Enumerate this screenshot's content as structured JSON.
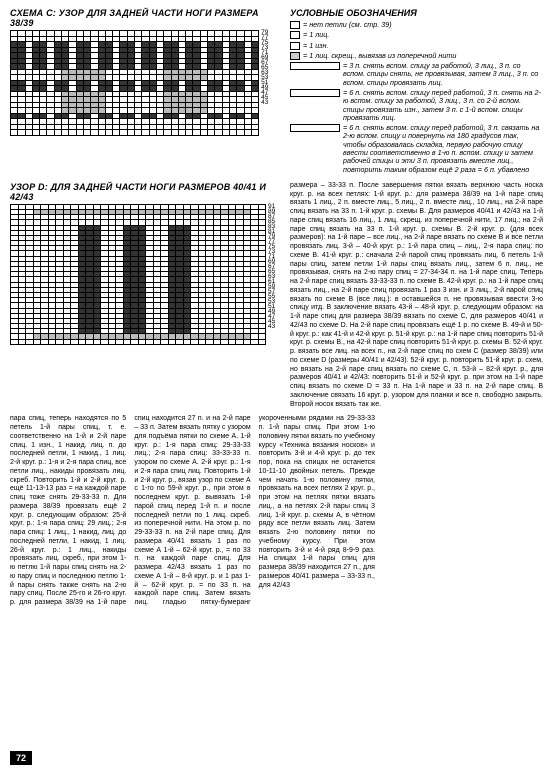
{
  "chartC": {
    "title": "СХЕМА С: УЗОР ДЛЯ ЗАДНЕЙ ЧАСТИ НОГИ РАЗМЕРА 38/39",
    "cols": 34,
    "rows": 19,
    "row_labels": [
      "79",
      "77",
      "75",
      "73",
      "71",
      "69",
      "67",
      "65",
      "63",
      "53",
      "51",
      "49",
      "47",
      "45",
      "43"
    ],
    "black_rows": [
      2,
      3,
      4,
      5,
      6,
      9,
      10,
      15
    ],
    "gray_rows": [
      7,
      8,
      11,
      12,
      13,
      14
    ]
  },
  "chartD": {
    "title": "УЗОР D: ДЛЯ ЗАДНЕЙ ЧАСТИ НОГИ РАЗМЕРОВ 40/41 И 42/43",
    "cols": 34,
    "rows": 27,
    "row_labels": [
      "91",
      "89",
      "87",
      "85",
      "83",
      "81",
      "79",
      "77",
      "75",
      "73",
      "71",
      "69",
      "67",
      "65",
      "63",
      "61",
      "59",
      "57",
      "55",
      "53",
      "51",
      "49",
      "47",
      "45",
      "43"
    ],
    "col_marks": [
      9,
      10,
      11,
      15,
      16,
      17,
      21,
      22,
      23
    ]
  },
  "legend": {
    "title": "УСЛОВНЫЕ ОБОЗНАЧЕНИЯ",
    "items": [
      {
        "sym": "blank",
        "txt": "= нет петли (см. стр. 39)"
      },
      {
        "sym": "blank",
        "txt": "= 1 лиц."
      },
      {
        "sym": "blank",
        "txt": "= 1 изн."
      },
      {
        "sym": "gray",
        "txt": "= 1 лиц. скрещ., вывязав из поперечной нити"
      },
      {
        "sym": "wide",
        "txt": "= 3 п. снять вспом. спицу за работой, 3 лиц., 3 п. со вспом. спицы снять, не провязывая, затем 3 лиц., 3 п. со вспом. спицы провязать лиц."
      },
      {
        "sym": "wide",
        "txt": "= 6 п. снять вспом. спицу перед работой, 3 п. снять на 2-ю вспом. спицу за работой, 3 лиц., 3 п. со 2-й вспом. спицы провязать изн., затем 3 п. с 1-й вспом. спицы провязать лиц."
      },
      {
        "sym": "wide",
        "txt": "= 6 п. снять вспом. спицу перед работой, 3 п. связать на 2-ю вспом. спицу и повернуть на 180 градусов так, чтобы образовалась складка, первую рабочую спицу ввести соответственно в 1-ю п. вспом. спицу и затем рабочей спицы и эти 3 п. провязать вместе лиц., повторить таким образом ещё 2 раза = 6 п. убавлено"
      }
    ]
  },
  "right_flow": "размера – 33-33 п. После завершения пятки вязать верхнюю часть носка круг. р. на всех петлях: 1-й круг. р.: для размера 38/39 на 1-й паре спиц вязать 1 лиц., 2 п. вместе лиц., 5 лиц., 2 п. вместе лиц., 10 лиц., на 2-й паре спиц вязать на 33 п. 1-й круг. р. схемы В. Для размеров 40/41 и 42/43 на 1-й паре спиц вязать 16 лиц., 1 лиц. скрещ. из поперечной нити, 17 лиц.; на 2-й паре спиц вязать на 33 п. 1-й круг. р. схемы В. 2-й круг. р. (для всех размеров): на 1-й паре – все лиц., на 2-й паре вязать по схеме B и все петли провязать лиц. 3-й – 40-й круг. р.: 1-й пара спиц – лиц., 2-я пара спиц: по схеме В. 41-й круг. р.: сначала 2-й парой спиц провязать лиц. 6 петель 1-й пары спиц, затем петли 1-й пары спиц вязать лиц., затем 6 п. лиц., не провязывая, снять на 2-ю пару спиц = 27-34-34 п. на 1-й паре спиц. Теперь на 2-й паре спиц вязать 33-33-33 п. по схеме В. 42-й круг. р.: на 1-й паре спиц вязать лиц., на 2-й паре спиц провязать 1 раз 3 изн. и 3 лиц., 2-й парой спиц вязать по схеме В (все лиц.): в оставшейся п. не провязывая ввести 3-ю спицу итд. В заключение вязать 43-й – 48-й круг. р. следующим образом: на 1-й паре спиц для размера 38/39 вязать по схеме С, для размеров 40/41 и 42/43 по схеме D. На 2-й паре спиц провязать ещё 1 p. по схеме B. 49-й и 50-й круг. р.: как 41-й и 42-й круг. р. 51-й круг. р.: на 1-й паре спиц повторить 51-й круг. р. схемы В., на 42-й паре спиц повторить 51-й круг. р. схемы В. 52-й круг. р. вязать все лиц. на всех п., на 2-й паре спиц по схем C (размер 38/39) или по схеме D (размеры 40/41 и 42/43). 52-й круг. р. повторить 51-й круг. р. схем, но вязать на 2-й паре спиц вязать по схеме С, п. 53-й – 82-й круг. р., для размеров 40/41 и 42/43: повторить 51-й и 52-й круг. р. при этом на 1-й паре спиц вязать по схеме D = 33 п. На 1-й паре и 33 п. на 2-й паре спиц. В заключение связать 16 круг. р. узором для планки и все п. свободно закрыть. Второй носок вязать так же.",
  "bottom_text": "пара спиц, теперь находятся по 5 петель 1-й пары спиц, т. е. соответственно на 1-й и 2-й паре спиц. 1 изн., 1 накид. лиц. п. до последней петли, 1 накид., 1 лиц. 2-й круг. р.: 1-я и 2-я пара спиц, все петли лиц., накиды провязать лиц. скреб. Повторить 1-й и 2-й круг. р. ещё 11-13-13 раз = на каждой паре спиц тоже снять 29-33-33 п. Для размера 38/39 провязать ещё 2 круг. р. следующим образом: 25-й круг. р.: 1-я пара спиц: 29 лиц.; 2-я пара спиц: 1 лиц., 1 накид, лиц. до последней петли, 1 накид, 1 лиц. 26-й круг. р.: 1 лиц., накиды провязать лиц. скреб., при этом 1-ю петлю 1-й пары спиц снять на 2-ю пару спиц и последнюю петлю 1-й пары снять также снять на 2-ю пару спиц. После 25-го и 26-го круг. р. для размера 38/39 на 1-й паре спиц находится 27 п. и на 2-й паре – 33 п. Затем вязать пятку с узором для подъёма пятки по схеме А. 1-й круг. р.: 1-я пара спиц: 29-33-33 лиц.; 2-я пара спиц: 33-33-33 п. узором по схеме А. 2-й круг. р.: 1-я и 2-я пара спиц лиц. Повторить 1-й и 2-й круг. р., вязав узор по схеме А с 1-го по 59-й круг. р., при этом в последнем круг. р. вывязать 1-й парой спиц перед 1-й п. и после последней петли по 1 лиц. скреб. из поперечной нити. На этом р. по 29-33-33 п. на 2-й паре спиц. Для размера 40/41 вязать 1 раз по схеме А 1-й – 62-й круг. р., = по 33 п. на каждой паре спиц. Для размера 42/43 вязать 1 раз по схеме А 1-й – 8-й круг. р. и 1 раз 1-й – 62-й круг. р. = по 33 п. на каждой паре спиц. Затем вязать лиц. гладью пятку-бумеранг укороченными рядами на 29-33-33 п. 1-й пары спиц. При этом 1-ю половину пятки вязать по учебному курсу «Техника вязания носков» и повторить 3-й и 4-й круг. р. до тех пор, пока на спицах не останется 10-11-10 двойных петель. Прежде чем начать 1-ю половину пятки, провязать на всех петлях 2 круг. р., при этом на петлях пятки вязать лиц., а на петлях 2-й пары спиц 3 лиц. 1-й круг. р. схемы А, в чётном ряду все петли вязать лиц. Затем вязать 2-ю половину пятки по учебному курсу. При этом повторить 3-й и 4-й ряд 8-9-9 раз. На спицах 1-й пары спиц для размера 38/39 находится 27 п., для размеров 40/41 размера – 33-33 п., для 42/43",
  "page": "72"
}
